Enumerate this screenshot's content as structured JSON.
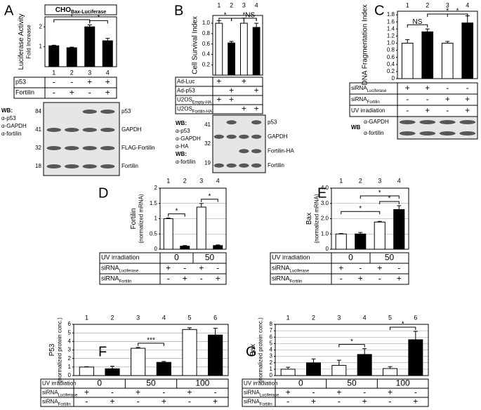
{
  "chart_data": [
    {
      "type": "bar",
      "panel": "A",
      "title": "CHO",
      "title_sub": "Bax-Luciferase",
      "ylabel": [
        "Luciferase Activity",
        "Fold Increase"
      ],
      "categories": [
        "1",
        "2",
        "3",
        "4"
      ],
      "values": [
        1.05,
        0.95,
        2.0,
        1.3
      ],
      "errors": [
        0.03,
        0.03,
        0.1,
        0.12
      ],
      "colors": [
        "#000000",
        "#000000",
        "#000000",
        "#000000"
      ],
      "ylim": [
        0,
        2.5
      ],
      "yticks": [
        1,
        2
      ],
      "grid": false,
      "annotations": [
        "*",
        "*"
      ],
      "table": [
        {
          "label": "p53",
          "cells": [
            "-",
            "-",
            "+",
            "+"
          ]
        },
        {
          "label": "Fortilin",
          "cells": [
            "-",
            "+",
            "-",
            "+"
          ]
        }
      ],
      "blot": {
        "left": [
          "WB:",
          "α-p53",
          "α-GAPDH",
          "α-fortilin"
        ],
        "markers": [
          84,
          41,
          32,
          18
        ],
        "bands": [
          "p53",
          "GAPDH",
          "FLAG-Fortilin",
          "Fortilin"
        ]
      }
    },
    {
      "type": "bar",
      "panel": "B",
      "ylabel": [
        "Cell Survival Index"
      ],
      "categories": [
        "1",
        "2",
        "3",
        "4"
      ],
      "values": [
        1.0,
        0.62,
        1.0,
        0.92
      ],
      "errors": [
        0.05,
        0.03,
        0.1,
        0.08
      ],
      "colors": [
        "#ffffff",
        "#000000",
        "#ffffff",
        "#000000"
      ],
      "ylim": [
        0,
        1.15
      ],
      "yticks": [
        0.2,
        0.4,
        0.6,
        0.8,
        {
          "value": 1,
          "label": "1.0"
        }
      ],
      "grid": false,
      "annotations": [
        "*",
        "*",
        "NS"
      ],
      "table": [
        {
          "label": "Ad-Luc",
          "cells": [
            "+",
            "",
            "+",
            ""
          ]
        },
        {
          "label": "Ad-p53",
          "cells": [
            "",
            "+",
            "",
            "+"
          ]
        },
        {
          "label": "U2OS",
          "sub": "Empty-HA",
          "cells": [
            "+",
            "+",
            "",
            ""
          ]
        },
        {
          "label": "U2OS",
          "sub": "Fortilin-HA",
          "cells": [
            "",
            "",
            "+",
            "+"
          ]
        }
      ],
      "blot": {
        "left": [
          "WB:",
          "α-p53",
          "α-GAPDH",
          "α-HA",
          "WB:",
          "α-fortilin"
        ],
        "markers": [
          41,
          32,
          19
        ],
        "bands": [
          "p53",
          "GAPDH",
          "Fortilin-HA",
          "Fortilin"
        ]
      }
    },
    {
      "type": "bar",
      "panel": "C",
      "ylabel": [
        "DNA Fragmentation Index"
      ],
      "categories": [
        "1",
        "2",
        "3",
        "4"
      ],
      "values": [
        1.0,
        1.32,
        1.0,
        1.57
      ],
      "errors": [
        0.1,
        0.08,
        0.05,
        0.2
      ],
      "colors": [
        "#ffffff",
        "#000000",
        "#ffffff",
        "#000000"
      ],
      "ylim": [
        0,
        1.9
      ],
      "yticks": [
        0,
        0.2,
        0.4,
        0.6,
        0.8,
        {
          "value": 1,
          "label": "1.0"
        },
        1.2,
        1.4,
        1.6,
        1.8
      ],
      "grid": false,
      "annotations": [
        "NS",
        "*",
        "*"
      ],
      "table": [
        {
          "label": "siRNA",
          "sub": "Luciferase",
          "cells": [
            "+",
            "+",
            "-",
            "-"
          ]
        },
        {
          "label": "siRNA",
          "sub": "Fortilin",
          "cells": [
            "-",
            "-",
            "+",
            "+"
          ]
        },
        {
          "label": "UV irradiation",
          "cells": [
            "-",
            "+",
            "-",
            "+"
          ]
        }
      ],
      "blot": {
        "left": [
          "WB",
          "α-GAPDH",
          "α-fortilin"
        ],
        "markers": [],
        "bands": []
      }
    },
    {
      "type": "bar",
      "panel": "D",
      "ylabel": [
        "Fortilin",
        "(normalized mRNA)"
      ],
      "categories": [
        "1",
        "2",
        "3",
        "4"
      ],
      "values": [
        1.0,
        0.1,
        1.38,
        0.12
      ],
      "errors": [
        0.02,
        0.02,
        0.12,
        0.02
      ],
      "colors": [
        "#ffffff",
        "#000000",
        "#ffffff",
        "#000000"
      ],
      "ylim": [
        0,
        2
      ],
      "yticks": [
        0,
        0.5,
        1,
        1.5,
        2
      ],
      "grid": true,
      "annotations": [
        "*",
        "*"
      ],
      "table": [
        {
          "label": "UV irradiation",
          "cells": [
            "0",
            "50"
          ]
        },
        {
          "label": "siRNA",
          "sub": "Luciferase",
          "cells": [
            "+",
            "-",
            "+",
            "-"
          ]
        },
        {
          "label": "siRNA",
          "sub": "Fortilin",
          "cells": [
            "-",
            "+",
            "-",
            "+"
          ]
        }
      ]
    },
    {
      "type": "bar",
      "panel": "E",
      "ylabel": [
        "Bax",
        "(normalized mRNA)"
      ],
      "categories": [
        "1",
        "2",
        "3",
        "4"
      ],
      "values": [
        1.0,
        1.0,
        1.78,
        2.6
      ],
      "errors": [
        0.03,
        0.1,
        0.05,
        0.25
      ],
      "colors": [
        "#ffffff",
        "#000000",
        "#ffffff",
        "#000000"
      ],
      "ylim": [
        0,
        4
      ],
      "yticks": [
        0,
        {
          "value": 1,
          "label": "1.0"
        },
        {
          "value": 2,
          "label": "2.0"
        },
        {
          "value": 3,
          "label": "3.0"
        },
        {
          "value": 4,
          "label": "4.0"
        }
      ],
      "grid": true,
      "annotations": [
        "*",
        "*",
        "*"
      ],
      "table": [
        {
          "label": "UV irradiation",
          "cells": [
            "0",
            "50"
          ]
        },
        {
          "label": "siRNA",
          "sub": "Luciferase",
          "cells": [
            "+",
            "-",
            "+",
            "-"
          ]
        },
        {
          "label": "siRNA",
          "sub": "Fortilin",
          "cells": [
            "-",
            "+",
            "-",
            "+"
          ]
        }
      ]
    },
    {
      "type": "bar",
      "panel": "F",
      "ylabel": [
        "P53",
        "(normalized protein conc.)"
      ],
      "categories": [
        "1",
        "2",
        "3",
        "4",
        "5",
        "6"
      ],
      "values": [
        1.0,
        0.8,
        3.2,
        1.55,
        5.4,
        4.75
      ],
      "errors": [
        0.05,
        0.3,
        0.1,
        0.1,
        0.2,
        0.8
      ],
      "colors": [
        "#ffffff",
        "#000000",
        "#ffffff",
        "#000000",
        "#ffffff",
        "#000000"
      ],
      "ylim": [
        0,
        6
      ],
      "yticks": [
        0,
        1,
        2,
        3,
        4,
        5,
        6
      ],
      "grid": true,
      "annotations": [
        "***"
      ],
      "table": [
        {
          "label": "UV irradiation",
          "cells": [
            "0",
            "50",
            "100"
          ]
        },
        {
          "label": "siRNA",
          "sub": "Luciferase",
          "cells": [
            "+",
            "-",
            "+",
            "-",
            "+",
            "-"
          ]
        },
        {
          "label": "siRNA",
          "sub": "Fortilin",
          "cells": [
            "-",
            "+",
            "-",
            "+",
            "-",
            "+"
          ]
        }
      ]
    },
    {
      "type": "bar",
      "panel": "G",
      "ylabel": [
        "Bax",
        "(normalized protein conc.)"
      ],
      "categories": [
        "1",
        "2",
        "3",
        "4",
        "5",
        "6"
      ],
      "values": [
        1.0,
        2.0,
        1.6,
        3.3,
        1.1,
        5.6
      ],
      "errors": [
        0.3,
        0.6,
        0.8,
        0.9,
        0.3,
        1.3
      ],
      "colors": [
        "#ffffff",
        "#000000",
        "#ffffff",
        "#000000",
        "#ffffff",
        "#000000"
      ],
      "ylim": [
        0,
        8
      ],
      "yticks": [
        0,
        1,
        2,
        3,
        4,
        5,
        6,
        7,
        8
      ],
      "grid": true,
      "annotations": [
        "*",
        "*"
      ],
      "table": [
        {
          "label": "UV irradiation",
          "cells": [
            "0",
            "50",
            "100"
          ]
        },
        {
          "label": "siRNA",
          "sub": "Luciferase",
          "cells": [
            "+",
            "-",
            "+",
            "-",
            "+",
            "-"
          ]
        },
        {
          "label": "siRNA",
          "sub": "Fortilin",
          "cells": [
            "-",
            "+",
            "-",
            "+",
            "-",
            "+"
          ]
        }
      ]
    }
  ]
}
